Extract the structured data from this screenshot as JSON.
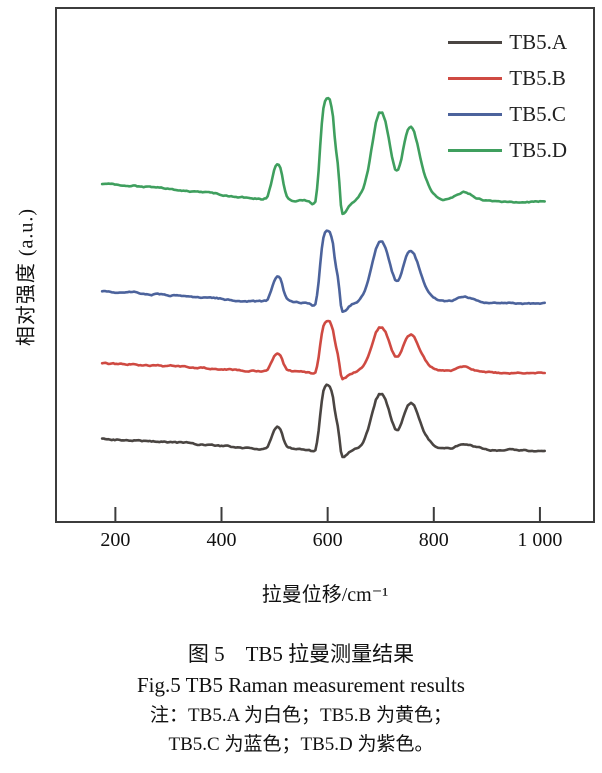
{
  "figure": {
    "y_axis_label": "相对强度 (a.u.)",
    "x_axis_label": "拉曼位移/cm⁻¹"
  },
  "caption": {
    "title_cn": "图 5　TB5 拉曼测量结果",
    "title_en": "Fig.5 TB5 Raman measurement results",
    "note_line1": "注：TB5.A 为白色；TB5.B 为黄色；",
    "note_line2": "TB5.C 为蓝色；TB5.D 为紫色。"
  },
  "chart_data": {
    "type": "line",
    "title": "",
    "xlabel": "拉曼位移/cm⁻¹",
    "ylabel": "相对强度 (a.u.)",
    "xlim": [
      90,
      1100
    ],
    "x_range": [
      175,
      1010
    ],
    "x_tick_values": [
      200,
      400,
      600,
      800,
      1000
    ],
    "x_tick_labels": [
      "200",
      "400",
      "600",
      "800",
      "1 000"
    ],
    "grid": false,
    "legend_position": "top-right",
    "frame_color": "#3c3c3c",
    "peak_positions_cm": [
      500,
      600,
      700,
      756,
      855
    ],
    "series": [
      {
        "name": "TB5.A",
        "color": "#4a4542",
        "baseline": 0.136,
        "amplitude": 0.13
      },
      {
        "name": "TB5.B",
        "color": "#cf4a42",
        "baseline": 0.288,
        "amplitude": 0.105
      },
      {
        "name": "TB5.C",
        "color": "#4c639c",
        "baseline": 0.422,
        "amplitude": 0.146
      },
      {
        "name": "TB5.D",
        "color": "#3f9f5e",
        "baseline": 0.62,
        "amplitude": 0.208
      }
    ],
    "shape_profile": [
      [
        175,
        0.185
      ],
      [
        192,
        0.178
      ],
      [
        208,
        0.172
      ],
      [
        222,
        0.168
      ],
      [
        238,
        0.172
      ],
      [
        252,
        0.158
      ],
      [
        268,
        0.15
      ],
      [
        285,
        0.142
      ],
      [
        302,
        0.135
      ],
      [
        320,
        0.128
      ],
      [
        338,
        0.118
      ],
      [
        356,
        0.108
      ],
      [
        374,
        0.098
      ],
      [
        392,
        0.088
      ],
      [
        410,
        0.075
      ],
      [
        428,
        0.062
      ],
      [
        446,
        0.052
      ],
      [
        462,
        0.045
      ],
      [
        476,
        0.04
      ],
      [
        486,
        0.055
      ],
      [
        493,
        0.185
      ],
      [
        500,
        0.34
      ],
      [
        506,
        0.38
      ],
      [
        512,
        0.33
      ],
      [
        518,
        0.15
      ],
      [
        524,
        0.055
      ],
      [
        534,
        0.032
      ],
      [
        546,
        0.03
      ],
      [
        558,
        0.028
      ],
      [
        566,
        0.015
      ],
      [
        572,
        -0.008
      ],
      [
        578,
        0.015
      ],
      [
        583,
        0.3
      ],
      [
        588,
        0.7
      ],
      [
        593,
        0.95
      ],
      [
        599,
        1.0
      ],
      [
        605,
        0.975
      ],
      [
        610,
        0.82
      ],
      [
        614,
        0.58
      ],
      [
        618,
        0.43
      ],
      [
        621,
        0.3
      ],
      [
        624,
        0.02
      ],
      [
        628,
        -0.09
      ],
      [
        633,
        -0.075
      ],
      [
        640,
        -0.02
      ],
      [
        649,
        0.02
      ],
      [
        659,
        0.06
      ],
      [
        668,
        0.15
      ],
      [
        676,
        0.32
      ],
      [
        684,
        0.56
      ],
      [
        691,
        0.76
      ],
      [
        697,
        0.85
      ],
      [
        703,
        0.848
      ],
      [
        709,
        0.77
      ],
      [
        715,
        0.62
      ],
      [
        721,
        0.45
      ],
      [
        727,
        0.33
      ],
      [
        732,
        0.31
      ],
      [
        738,
        0.39
      ],
      [
        744,
        0.55
      ],
      [
        750,
        0.68
      ],
      [
        756,
        0.73
      ],
      [
        762,
        0.7
      ],
      [
        769,
        0.57
      ],
      [
        776,
        0.41
      ],
      [
        783,
        0.27
      ],
      [
        791,
        0.165
      ],
      [
        799,
        0.1
      ],
      [
        809,
        0.06
      ],
      [
        821,
        0.04
      ],
      [
        833,
        0.05
      ],
      [
        846,
        0.092
      ],
      [
        857,
        0.115
      ],
      [
        867,
        0.098
      ],
      [
        879,
        0.06
      ],
      [
        891,
        0.035
      ],
      [
        905,
        0.022
      ],
      [
        921,
        0.015
      ],
      [
        941,
        0.02
      ],
      [
        961,
        0.02
      ],
      [
        981,
        0.015
      ],
      [
        1000,
        0.02
      ],
      [
        1010,
        0.026
      ]
    ]
  }
}
